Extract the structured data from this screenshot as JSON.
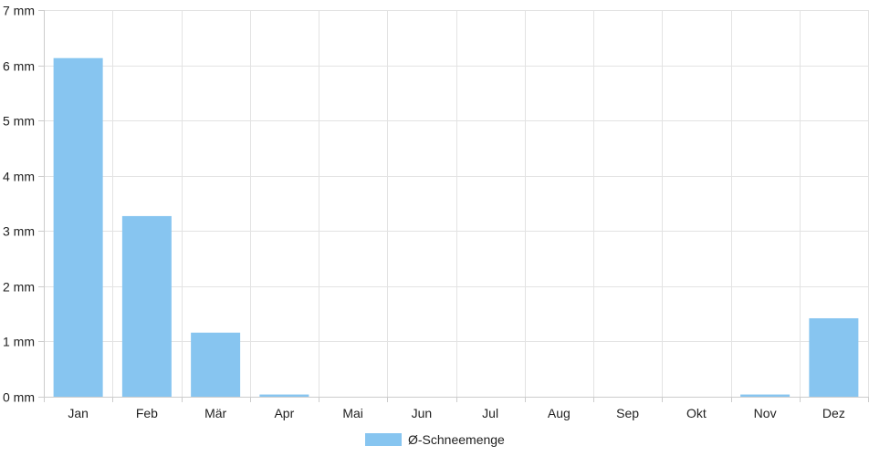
{
  "chart_data": {
    "type": "bar",
    "categories": [
      "Jan",
      "Feb",
      "Mär",
      "Apr",
      "Mai",
      "Jun",
      "Jul",
      "Aug",
      "Sep",
      "Okt",
      "Nov",
      "Dez"
    ],
    "series": [
      {
        "name": "Ø-Schneemenge",
        "values": [
          6.13,
          3.27,
          1.16,
          0.04,
          0,
          0,
          0,
          0,
          0,
          0,
          0.04,
          1.42
        ],
        "color": "#87c5f0"
      }
    ],
    "y_unit": "mm",
    "ylim": [
      0,
      7
    ],
    "yticks": [
      0,
      1,
      2,
      3,
      4,
      5,
      6,
      7
    ],
    "ytick_labels": [
      "0 mm",
      "1 mm",
      "2 mm",
      "3 mm",
      "4 mm",
      "5 mm",
      "6 mm",
      "7 mm"
    ],
    "grid": true,
    "legend_position": "bottom-center"
  }
}
